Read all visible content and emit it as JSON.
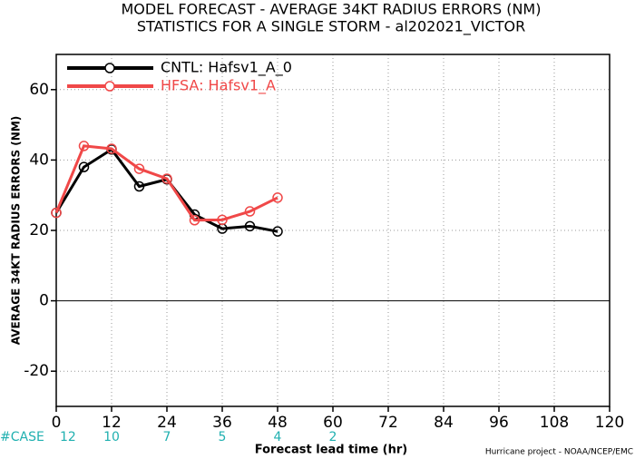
{
  "chart_data": {
    "type": "line",
    "title": "MODEL FORECAST - AVERAGE 34KT RADIUS ERRORS (NM)",
    "subtitle": "STATISTICS FOR A SINGLE STORM - al202021_VICTOR",
    "x_label": "Forecast lead time (hr)",
    "y_label": "AVERAGE 34KT RADIUS ERRORS (NM)",
    "footer": "Hurricane project - NOAA/NCEP/EMC",
    "x": [
      0,
      6,
      12,
      18,
      24,
      30,
      36,
      42,
      48
    ],
    "series": [
      {
        "name": "CNTL: Hafsv1_A_0",
        "color": "#000000",
        "values": [
          25,
          38,
          43,
          32.5,
          34.5,
          24.5,
          20.5,
          21.2,
          19.7
        ]
      },
      {
        "name": "HFSA: Hafsv1_A",
        "color": "#f04848",
        "values": [
          25,
          44,
          43.2,
          37.5,
          34.7,
          22.9,
          23,
          25.4,
          29.3
        ]
      }
    ],
    "xlim": [
      0,
      120
    ],
    "xticks": [
      0,
      12,
      24,
      36,
      48,
      60,
      72,
      84,
      96,
      108,
      120
    ],
    "ylim": [
      -30,
      70
    ],
    "yticks": [
      -20,
      0,
      20,
      40,
      60
    ],
    "grid": true,
    "legend": "top-left",
    "case_label": "#CASE",
    "case_x": [
      0,
      12,
      24,
      36,
      48,
      60
    ],
    "case_counts": [
      12,
      10,
      7,
      5,
      4,
      2
    ]
  }
}
